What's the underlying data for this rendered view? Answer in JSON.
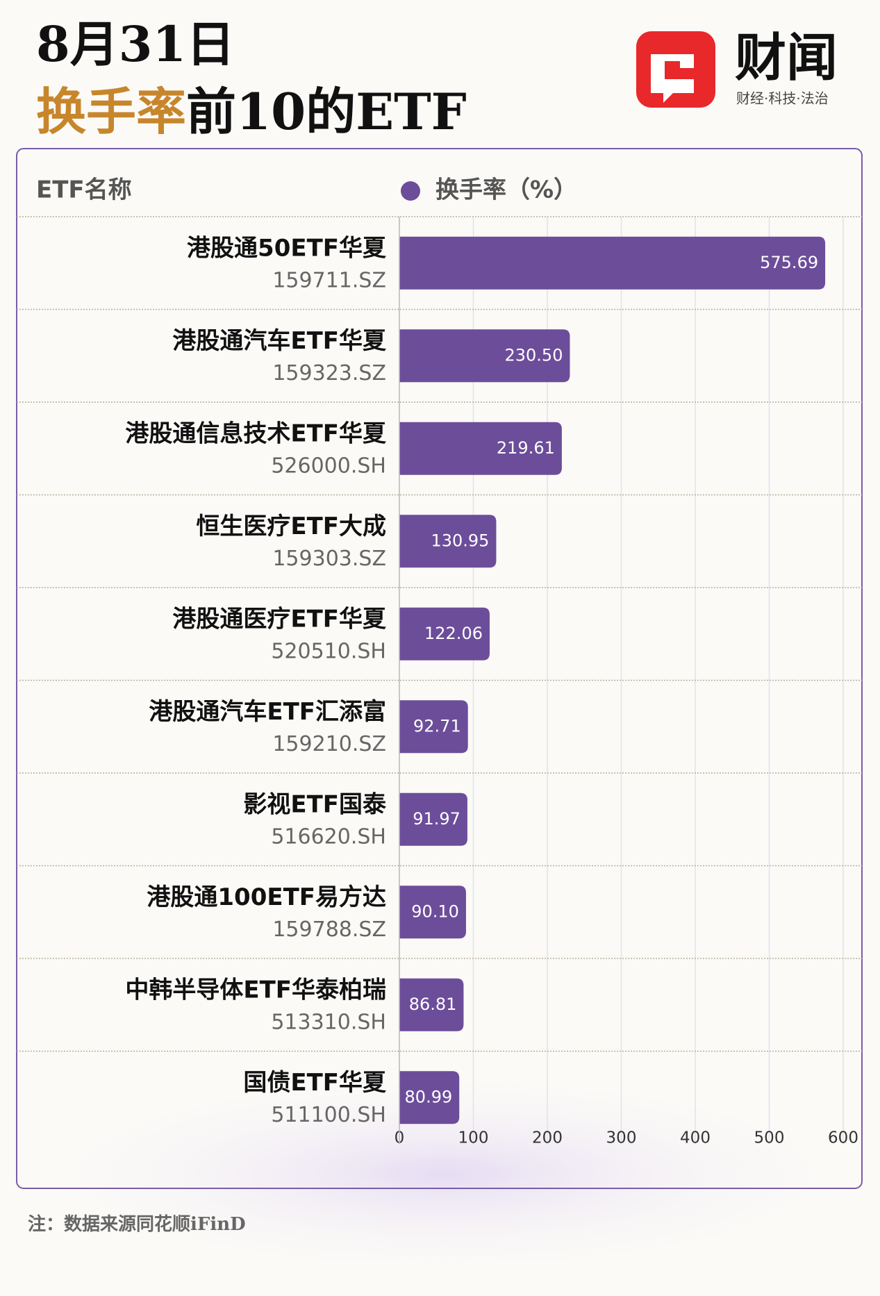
{
  "chart_data": {
    "type": "hbar",
    "title_line1": "8月31日",
    "title_highlight": "换手率",
    "title_rest": "前10的ETF",
    "brand": "财闻",
    "brand_tagline": "财经·科技·法治",
    "column_header": "ETF名称",
    "categories": [
      "港股通50ETF华夏",
      "港股通汽车ETF华夏",
      "港股通信息技术ETF华夏",
      "恒生医疗ETF大成",
      "港股通医疗ETF华夏",
      "港股通汽车ETF汇添富",
      "影视ETF国泰",
      "港股通100ETF易方达",
      "中韩半导体ETF华泰柏瑞",
      "国债ETF华夏"
    ],
    "category_codes": [
      "159711.SZ",
      "159323.SZ",
      "526000.SH",
      "159303.SZ",
      "520510.SH",
      "159210.SZ",
      "516620.SH",
      "159788.SZ",
      "513310.SH",
      "511100.SH"
    ],
    "series": [
      {
        "name": "换手率（%）",
        "color": "#6c4d9a",
        "values": [
          575.69,
          230.5,
          219.61,
          130.95,
          122.06,
          92.71,
          91.97,
          90.1,
          86.81,
          80.99
        ],
        "value_labels": [
          "575.69",
          "230.50",
          "219.61",
          "130.95",
          "122.06",
          "92.71",
          "91.97",
          "90.10",
          "86.81",
          "80.99"
        ]
      }
    ],
    "xlim": [
      0,
      600
    ],
    "xticks": [
      0,
      100,
      200,
      300,
      400,
      500,
      600
    ],
    "grid": true,
    "footnote": "注：数据来源同花顺iFinD"
  }
}
